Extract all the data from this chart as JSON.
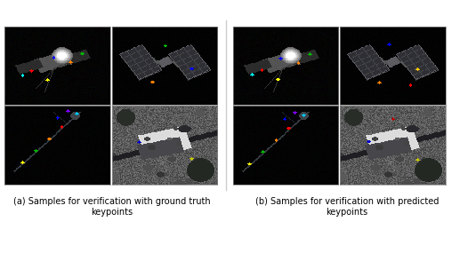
{
  "title_a": "(a) Samples for verification with ground truth\nkeypoints",
  "title_b": "(b) Samples for verification with predicted\nkeypoints",
  "fig_bg": "#ffffff",
  "title_fontsize": 7.0,
  "panel_bg": [
    0,
    0,
    0
  ],
  "img_size": 120,
  "separator_lw": 0.8
}
